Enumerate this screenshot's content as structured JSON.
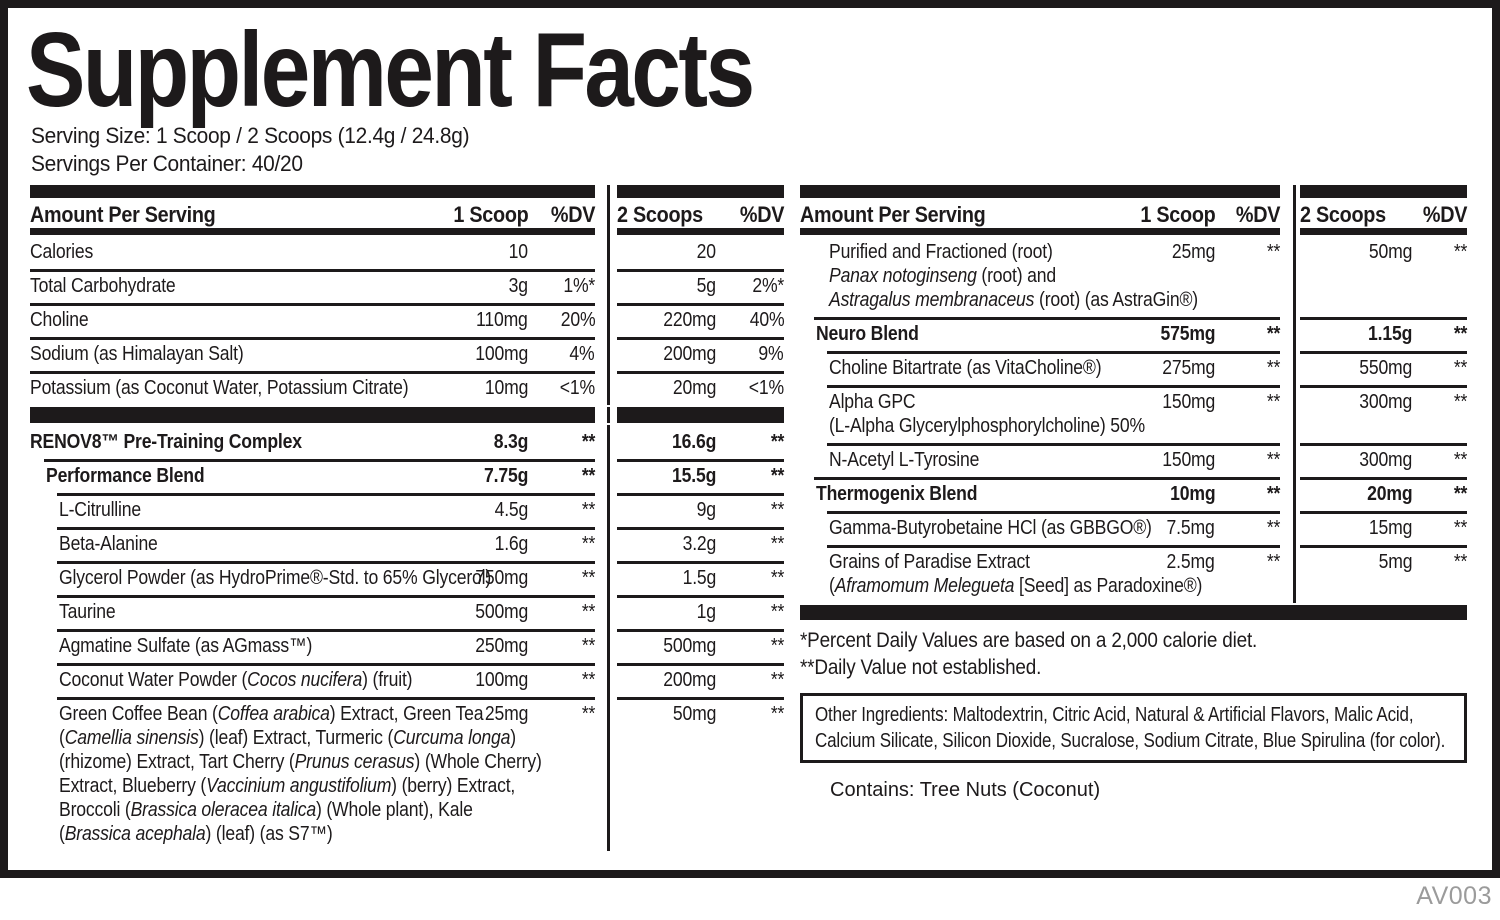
{
  "title": "Supplement Facts",
  "serving_size": "Serving Size: 1 Scoop / 2 Scoops (12.4g / 24.8g)",
  "servings_per_container": "Servings Per Container: 40/20",
  "footer_code": "AV003",
  "colors": {
    "ink": "#1d1a1b",
    "code_gray": "#9b9b9b",
    "background": "#ffffff"
  },
  "headers": {
    "amount_per_serving": "Amount Per Serving",
    "one_scoop": "1 Scoop",
    "two_scoops": "2 Scoops",
    "dv": "%DV"
  },
  "left_half": {
    "rows": [
      {
        "name_parts": [
          {
            "text": "Calories"
          }
        ],
        "indent": 0,
        "amt1": "10",
        "dv1": "",
        "amt2": "20",
        "dv2": ""
      },
      {
        "name_parts": [
          {
            "text": "Total Carbohydrate"
          }
        ],
        "indent": 0,
        "rule": 0,
        "rule2": 0,
        "amt1": "3g",
        "dv1": "1%*",
        "amt2": "5g",
        "dv2": "2%*"
      },
      {
        "name_parts": [
          {
            "text": "Choline"
          }
        ],
        "indent": 0,
        "rule": 0,
        "rule2": 0,
        "amt1": "110mg",
        "dv1": "20%",
        "amt2": "220mg",
        "dv2": "40%"
      },
      {
        "name_parts": [
          {
            "text": "Sodium (as Himalayan Salt)"
          }
        ],
        "indent": 0,
        "rule": 0,
        "rule2": 0,
        "amt1": "100mg",
        "dv1": "4%",
        "amt2": "200mg",
        "dv2": "9%"
      },
      {
        "name_parts": [
          {
            "text": "Potassium (as Coconut Water, Potassium Citrate)"
          }
        ],
        "indent": 0,
        "rule": 0,
        "rule2": 0,
        "amt1": "10mg",
        "dv1": "<1%",
        "amt2": "20mg",
        "dv2": "<1%"
      },
      {
        "bar": true
      },
      {
        "name_parts": [
          {
            "text": "RENOV8™ Pre-Training Complex"
          }
        ],
        "bold": true,
        "indent": 0,
        "amt1": "8.3g",
        "dv1": "**",
        "amt2": "16.6g",
        "dv2": "**"
      },
      {
        "name_parts": [
          {
            "text": "Performance Blend"
          }
        ],
        "bold": true,
        "indent": 1,
        "rule": 1,
        "rule2": 0,
        "amt1": "7.75g",
        "dv1": "**",
        "amt2": "15.5g",
        "dv2": "**"
      },
      {
        "name_parts": [
          {
            "text": "L-Citrulline"
          }
        ],
        "indent": 2,
        "rule": 2,
        "rule2": 0,
        "amt1": "4.5g",
        "dv1": "**",
        "amt2": "9g",
        "dv2": "**"
      },
      {
        "name_parts": [
          {
            "text": "Beta-Alanine"
          }
        ],
        "indent": 2,
        "rule": 2,
        "rule2": 0,
        "amt1": "1.6g",
        "dv1": "**",
        "amt2": "3.2g",
        "dv2": "**"
      },
      {
        "name_parts": [
          {
            "text": "Glycerol Powder (as HydroPrime®-Std. to 65% Glycerol)"
          }
        ],
        "indent": 2,
        "rule": 2,
        "rule2": 0,
        "amt1": "750mg",
        "dv1": "**",
        "amt2": "1.5g",
        "dv2": "**"
      },
      {
        "name_parts": [
          {
            "text": "Taurine"
          }
        ],
        "indent": 2,
        "rule": 2,
        "rule2": 0,
        "amt1": "500mg",
        "dv1": "**",
        "amt2": "1g",
        "dv2": "**"
      },
      {
        "name_parts": [
          {
            "text": "Agmatine Sulfate (as AGmass™)"
          }
        ],
        "indent": 2,
        "rule": 2,
        "rule2": 0,
        "amt1": "250mg",
        "dv1": "**",
        "amt2": "500mg",
        "dv2": "**"
      },
      {
        "name_parts": [
          {
            "text": "Coconut Water Powder ("
          },
          {
            "text": "Cocos nucifera",
            "italic": true
          },
          {
            "text": ") (fruit)"
          }
        ],
        "indent": 2,
        "rule": 2,
        "rule2": 0,
        "amt1": "100mg",
        "dv1": "**",
        "amt2": "200mg",
        "dv2": "**"
      },
      {
        "name_parts": [
          {
            "text": "Green Coffee Bean ("
          },
          {
            "text": "Coffea arabica",
            "italic": true
          },
          {
            "text": ") Extract, Green Tea"
          },
          {
            "break": true
          },
          {
            "text": "("
          },
          {
            "text": "Camellia sinensis",
            "italic": true
          },
          {
            "text": ") (leaf) Extract, Turmeric ("
          },
          {
            "text": "Curcuma longa",
            "italic": true
          },
          {
            "text": ")"
          },
          {
            "break": true
          },
          {
            "text": "(rhizome) Extract, Tart Cherry ("
          },
          {
            "text": "Prunus cerasus",
            "italic": true
          },
          {
            "text": ") (Whole Cherry)"
          },
          {
            "break": true
          },
          {
            "text": "Extract, Blueberry ("
          },
          {
            "text": "Vaccinium angustifolium",
            "italic": true
          },
          {
            "text": ") (berry) Extract,"
          },
          {
            "break": true
          },
          {
            "text": "Broccoli ("
          },
          {
            "text": "Brassica oleracea italica",
            "italic": true
          },
          {
            "text": ") (Whole plant), Kale"
          },
          {
            "break": true
          },
          {
            "text": "("
          },
          {
            "text": "Brassica acephala",
            "italic": true
          },
          {
            "text": ") (leaf) (as S7™)"
          }
        ],
        "indent": 2,
        "rule": 2,
        "rule2": 0,
        "amt1": "25mg",
        "dv1": "**",
        "amt2": "50mg",
        "dv2": "**"
      }
    ]
  },
  "right_half": {
    "rows": [
      {
        "name_parts": [
          {
            "text": "Purified and Fractioned (root)"
          },
          {
            "break": true
          },
          {
            "text": "Panax notoginseng",
            "italic": true
          },
          {
            "text": " (root) and"
          },
          {
            "break": true
          },
          {
            "text": "Astragalus membranaceus",
            "italic": true
          },
          {
            "text": " (root) (as AstraGin®)"
          }
        ],
        "indent": 2,
        "amt1": "25mg",
        "dv1": "**",
        "amt2": "50mg",
        "dv2": "**"
      },
      {
        "name_parts": [
          {
            "text": "Neuro Blend"
          }
        ],
        "bold": true,
        "indent": 1,
        "rule": 1,
        "rule2": 0,
        "amt1": "575mg",
        "dv1": "**",
        "amt2": "1.15g",
        "dv2": "**"
      },
      {
        "name_parts": [
          {
            "text": "Choline Bitartrate (as VitaCholine®)"
          }
        ],
        "indent": 2,
        "rule": 2,
        "rule2": 0,
        "amt1": "275mg",
        "dv1": "**",
        "amt2": "550mg",
        "dv2": "**"
      },
      {
        "name_parts": [
          {
            "text": "Alpha GPC"
          },
          {
            "break": true
          },
          {
            "text": "(L-Alpha Glycerylphosphorylcholine) 50%"
          }
        ],
        "indent": 2,
        "rule": 2,
        "rule2": 0,
        "amt1": "150mg",
        "dv1": "**",
        "amt2": "300mg",
        "dv2": "**"
      },
      {
        "name_parts": [
          {
            "text": "N-Acetyl L-Tyrosine"
          }
        ],
        "indent": 2,
        "rule": 2,
        "rule2": 0,
        "amt1": "150mg",
        "dv1": "**",
        "amt2": "300mg",
        "dv2": "**"
      },
      {
        "name_parts": [
          {
            "text": "Thermogenix Blend"
          }
        ],
        "bold": true,
        "indent": 1,
        "rule": 1,
        "rule2": 0,
        "amt1": "10mg",
        "dv1": "**",
        "amt2": "20mg",
        "dv2": "**"
      },
      {
        "name_parts": [
          {
            "text": "Gamma-Butyrobetaine HCl (as GBBGO®)"
          }
        ],
        "indent": 2,
        "rule": 2,
        "rule2": 0,
        "amt1": "7.5mg",
        "dv1": "**",
        "amt2": "15mg",
        "dv2": "**"
      },
      {
        "name_parts": [
          {
            "text": "Grains of Paradise Extract"
          },
          {
            "break": true
          },
          {
            "text": "("
          },
          {
            "text": "Aframomum Melegueta",
            "italic": true
          },
          {
            "text": " [Seed] as Paradoxine®)"
          }
        ],
        "indent": 2,
        "rule": 2,
        "rule2": 0,
        "amt1": "2.5mg",
        "dv1": "**",
        "amt2": "5mg",
        "dv2": "**"
      },
      {
        "bar": true,
        "span": true
      }
    ],
    "footnote1": "*Percent Daily Values are based on a 2,000 calorie diet.",
    "footnote2": "**Daily Value not established.",
    "other_ingredients_parts": [
      {
        "text": "Other Ingredients: Maltodextrin, Citric Acid, Natural & Artificial Flavors, Malic Acid,"
      },
      {
        "break": true
      },
      {
        "text": "Calcium Silicate, Silicon Dioxide, Sucralose, Sodium Citrate, Blue Spirulina (for color)."
      }
    ],
    "contains": "Contains: Tree Nuts (Coconut)"
  }
}
